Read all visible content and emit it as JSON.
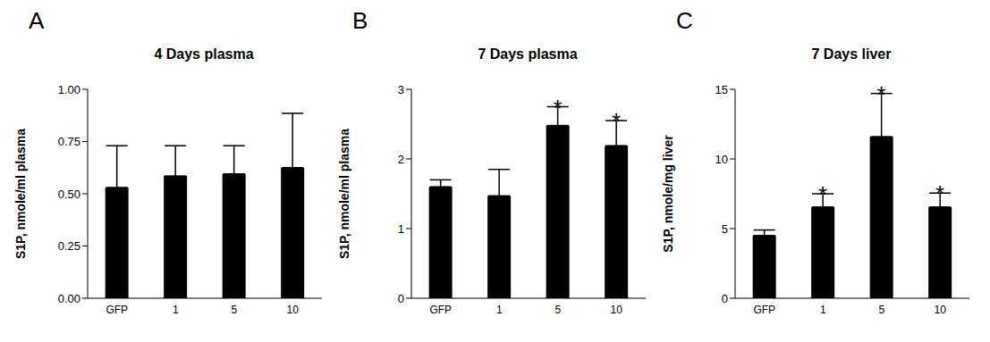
{
  "chart_data": [
    {
      "type": "bar",
      "panel": "A",
      "title": "4 Days plasma",
      "y_label": "S1P, nmole/ml plasma",
      "categories": [
        "GFP",
        "1",
        "5",
        "10"
      ],
      "values": [
        0.53,
        0.585,
        0.595,
        0.625
      ],
      "errors": [
        0.2,
        0.145,
        0.135,
        0.26
      ],
      "color": "#000000",
      "ylim": [
        0,
        1
      ],
      "yticks": [
        {
          "value": 0,
          "label": "0.00"
        },
        {
          "value": 0.25,
          "label": "0.25"
        },
        {
          "value": 0.5,
          "label": "0.50"
        },
        {
          "value": 0.75,
          "label": "0.75"
        },
        {
          "value": 1,
          "label": "1.00"
        }
      ]
    },
    {
      "type": "bar",
      "panel": "B",
      "title": "7 Days plasma",
      "y_label": "S1P, nmole/ml plasma",
      "categories": [
        "GFP",
        "1",
        "5",
        "10"
      ],
      "values": [
        1.6,
        1.47,
        2.48,
        2.19
      ],
      "errors": [
        0.1,
        0.38,
        0.27,
        0.36
      ],
      "annotations": [
        null,
        null,
        "*",
        "*"
      ],
      "color": "#000000",
      "ylim": [
        0,
        3
      ],
      "yticks": [
        0,
        1,
        2,
        3
      ]
    },
    {
      "type": "bar",
      "panel": "C",
      "title": "7 Days liver",
      "y_label": "S1P, nmole/mg liver",
      "categories": [
        "GFP",
        "1",
        "5",
        "10"
      ],
      "values": [
        4.5,
        6.55,
        11.6,
        6.55
      ],
      "errors": [
        0.4,
        0.95,
        3.1,
        1.0
      ],
      "annotations": [
        null,
        "*",
        "*",
        "*"
      ],
      "color": "#000000",
      "ylim": [
        0,
        15
      ],
      "yticks": [
        0,
        5,
        10,
        15
      ]
    }
  ]
}
